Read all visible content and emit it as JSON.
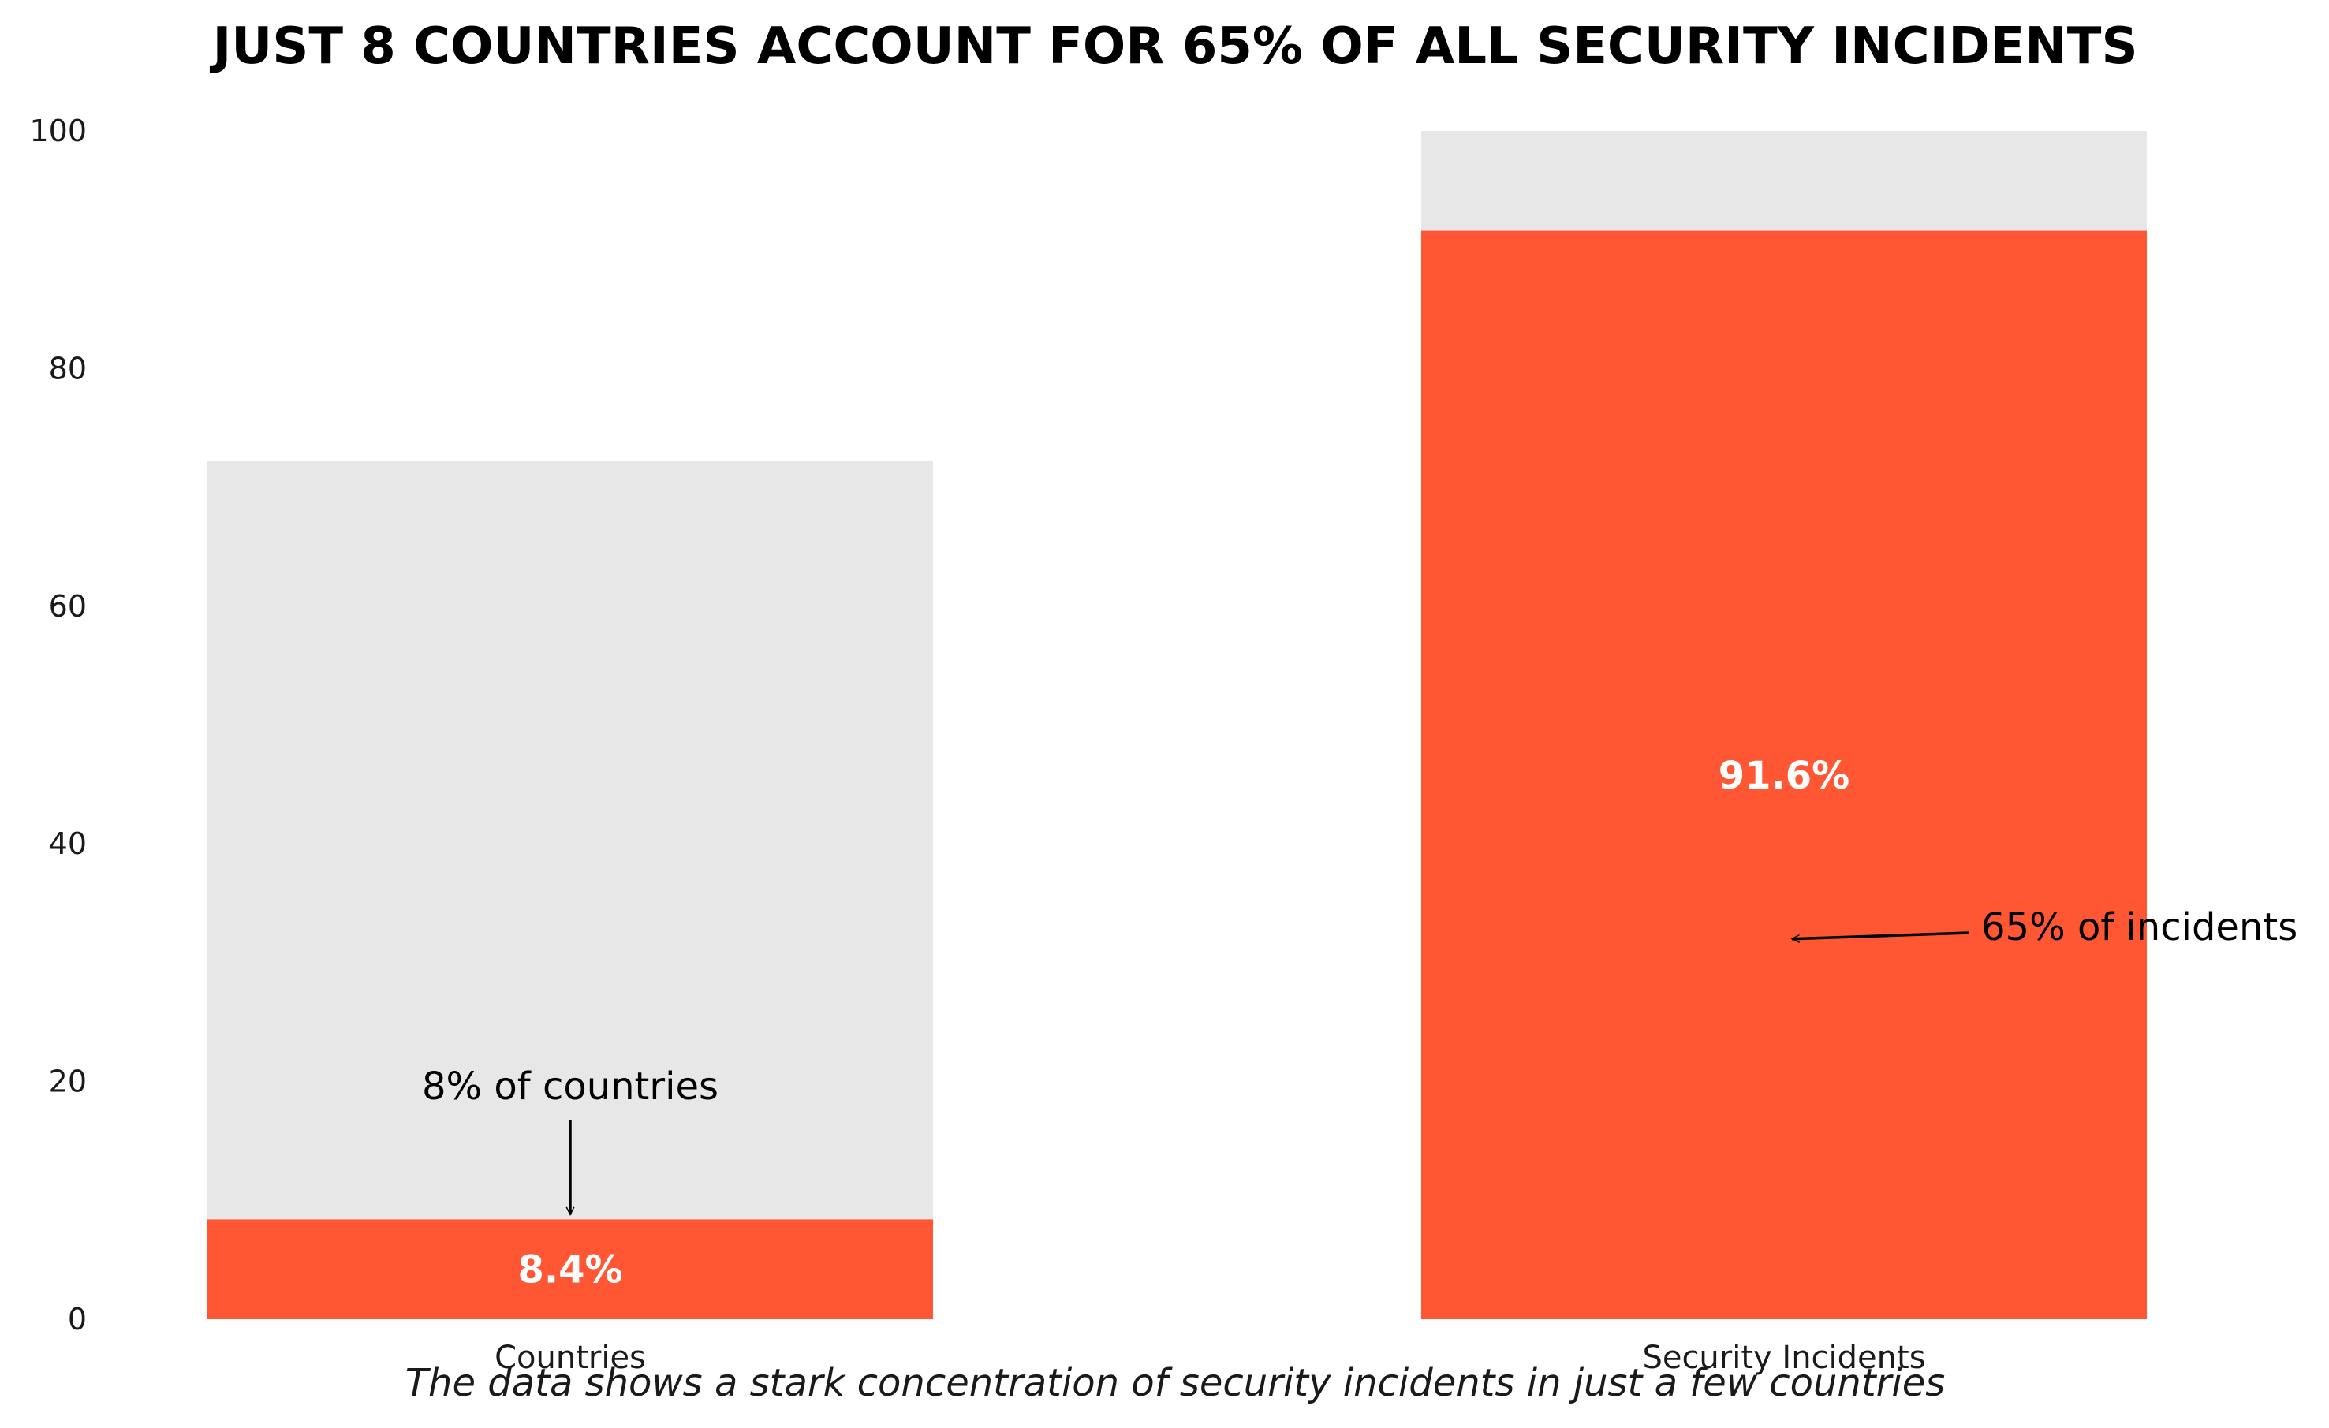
{
  "chart_data": {
    "type": "bar",
    "title": "JUST 8 COUNTRIES ACCOUNT FOR 65% OF ALL SECURITY INCIDENTS",
    "caption": "The data shows a stark concentration of security incidents in just a few countries",
    "categories": [
      "Countries",
      "Security Incidents"
    ],
    "series": [
      {
        "values": [
          8.4,
          91.6
        ]
      },
      {
        "values": [
          72.2,
          100
        ]
      }
    ],
    "data_labels": [
      "8.4%",
      "91.6%"
    ],
    "annotations": [
      {
        "text": "8% of countries",
        "category": "Countries",
        "points_to": 8.4
      },
      {
        "text": "65% of incidents",
        "category": "Security Incidents",
        "points_to": 32
      }
    ],
    "ylim": [
      0,
      100
    ],
    "yticks": [
      0,
      20,
      40,
      60,
      80,
      100
    ],
    "xlabel": "",
    "ylabel": "",
    "grid": false,
    "legend": "none",
    "colors": {
      "highlight": "#ff5733",
      "background_bar": "#e7e7e7",
      "value_label": "#ffffff"
    }
  }
}
